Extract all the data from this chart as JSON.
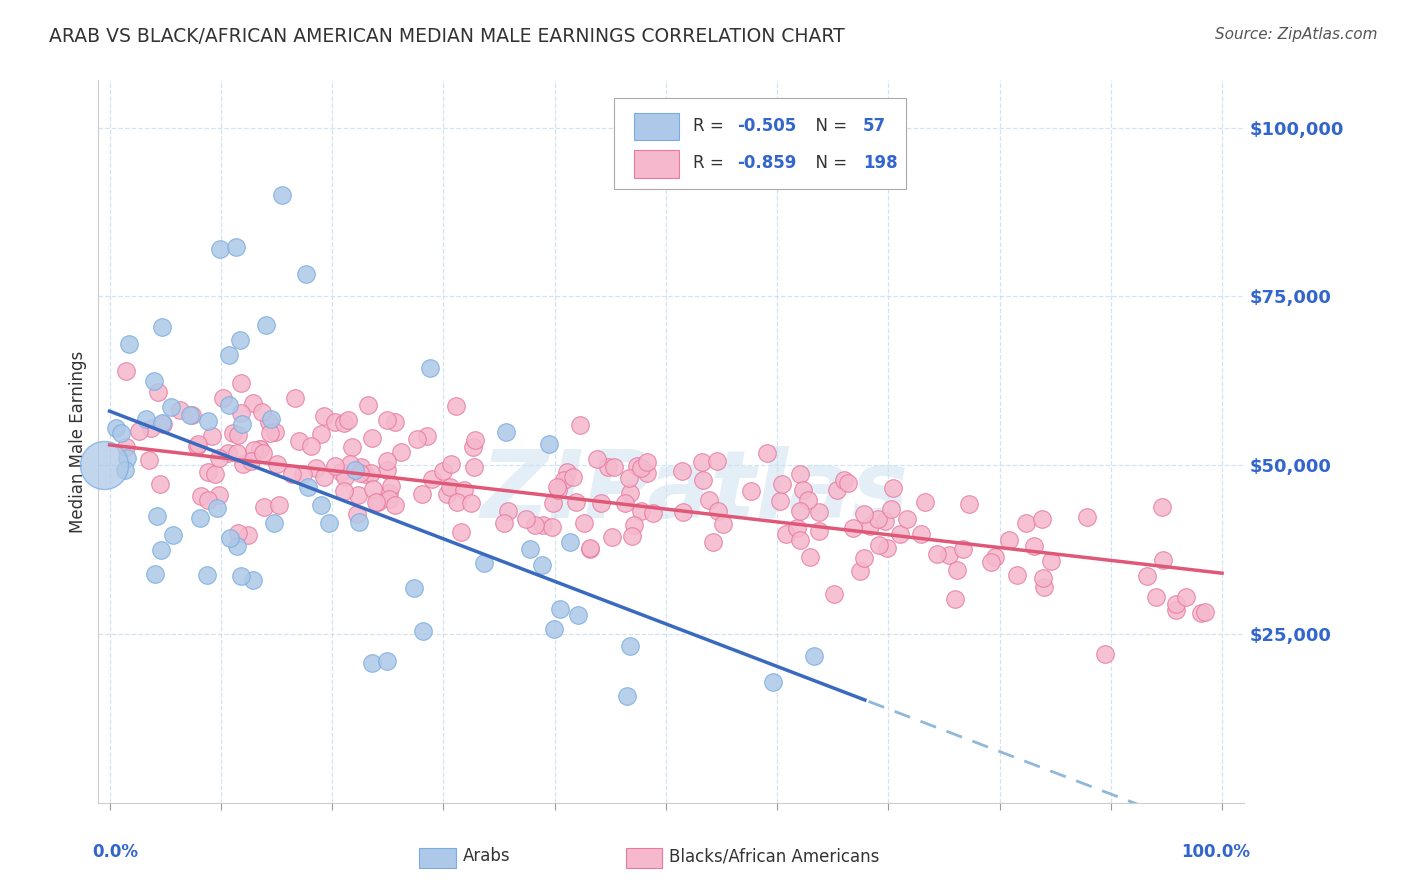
{
  "title": "ARAB VS BLACK/AFRICAN AMERICAN MEDIAN MALE EARNINGS CORRELATION CHART",
  "source": "Source: ZipAtlas.com",
  "ylabel": "Median Male Earnings",
  "ytick_labels": [
    "$25,000",
    "$50,000",
    "$75,000",
    "$100,000"
  ],
  "ytick_values": [
    25000,
    50000,
    75000,
    100000
  ],
  "watermark": "ZIPatlas",
  "arab_color": "#adc8e8",
  "arab_edge_color": "#7aace0",
  "black_color": "#f5b8cc",
  "black_edge_color": "#e87aa0",
  "arab_line_color": "#3a6abf",
  "black_line_color": "#e05878",
  "dash_line_color": "#90b8d8",
  "title_color": "#333333",
  "source_color": "#555555",
  "axis_color": "#3366cc",
  "legend_r_color": "#3366cc",
  "legend_n_color": "#333333",
  "background_color": "#ffffff",
  "grid_color": "#c8ddf0",
  "arab_r": -0.505,
  "arab_n": 57,
  "black_r": -0.859,
  "black_n": 198,
  "arab_seed": 10,
  "black_seed": 20,
  "ylim_min": 0,
  "ylim_max": 107000,
  "xlim_min": -0.01,
  "xlim_max": 1.02
}
